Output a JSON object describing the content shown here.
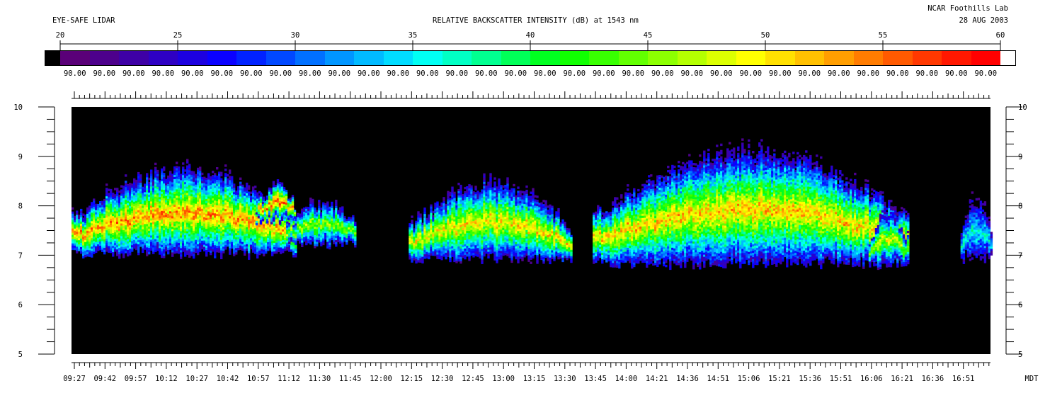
{
  "header": {
    "left_title": "EYE-SAFE LIDAR",
    "center_title": "RELATIVE BACKSCATTER INTENSITY (dB) at 1543 nm",
    "org": "NCAR Foothills Lab",
    "date": "28 AUG 2003"
  },
  "colorbar": {
    "ticks": [
      "20",
      "25",
      "30",
      "35",
      "40",
      "45",
      "50",
      "55",
      "60"
    ],
    "range": [
      20,
      60
    ],
    "value_labels": [
      "90.00",
      "90.00",
      "90.00",
      "90.00",
      "90.00",
      "90.00",
      "90.00",
      "90.00",
      "90.00",
      "90.00",
      "90.00",
      "90.00",
      "90.00",
      "90.00",
      "90.00",
      "90.00",
      "90.00",
      "90.00",
      "90.00",
      "90.00",
      "90.00",
      "90.00",
      "90.00",
      "90.00",
      "90.00",
      "90.00",
      "90.00",
      "90.00",
      "90.00",
      "90.00",
      "90.00",
      "90.00"
    ],
    "colors": [
      "#5a0078",
      "#4d008c",
      "#3e00a6",
      "#2e00c4",
      "#1c00e0",
      "#0a00ff",
      "#0022ff",
      "#0048ff",
      "#0070ff",
      "#0096ff",
      "#00baff",
      "#00dcff",
      "#00fff4",
      "#00ffc4",
      "#00ff90",
      "#00ff58",
      "#00ff20",
      "#10ff00",
      "#38ff00",
      "#62ff00",
      "#8cff00",
      "#b4ff00",
      "#dcff00",
      "#ffff00",
      "#ffe000",
      "#ffc000",
      "#ff9e00",
      "#ff7c00",
      "#ff5a00",
      "#ff3800",
      "#ff1800",
      "#ff0000"
    ]
  },
  "chart_data": {
    "type": "heatmap",
    "title": "RELATIVE BACKSCATTER INTENSITY (dB) at 1543 nm",
    "xlabel": "MDT",
    "ylabel": "",
    "x_ticks": [
      "09:27",
      "09:42",
      "09:57",
      "10:12",
      "10:27",
      "10:42",
      "10:57",
      "11:12",
      "11:30",
      "11:45",
      "12:00",
      "12:15",
      "12:30",
      "12:45",
      "13:00",
      "13:15",
      "13:30",
      "13:45",
      "14:00",
      "14:21",
      "14:36",
      "14:51",
      "15:06",
      "15:21",
      "15:36",
      "15:51",
      "16:06",
      "16:21",
      "16:36",
      "16:51"
    ],
    "y_ticks": [
      5,
      6,
      7,
      8,
      9,
      10
    ],
    "ylim": [
      5,
      10
    ],
    "color_scale": {
      "min": 20,
      "max": 60,
      "unit": "dB"
    },
    "cloud_layers": [
      {
        "start": "09:27",
        "end": "11:12",
        "base": 7.0,
        "top": 8.9,
        "peak_db": 58
      },
      {
        "start": "10:57",
        "end": "11:12",
        "base": 7.7,
        "top": 8.5,
        "peak_db": 60
      },
      {
        "start": "11:12",
        "end": "11:45",
        "base": 7.2,
        "top": 8.2,
        "peak_db": 50
      },
      {
        "start": "12:15",
        "end": "13:30",
        "base": 6.9,
        "top": 8.6,
        "peak_db": 55
      },
      {
        "start": "13:45",
        "end": "16:21",
        "base": 6.8,
        "top": 9.3,
        "peak_db": 56
      },
      {
        "start": "16:06",
        "end": "16:21",
        "base": 6.8,
        "top": 8.0,
        "peak_db": 52
      },
      {
        "start": "16:51",
        "end": "16:51",
        "base": 6.9,
        "top": 8.3,
        "peak_db": 40
      }
    ]
  }
}
